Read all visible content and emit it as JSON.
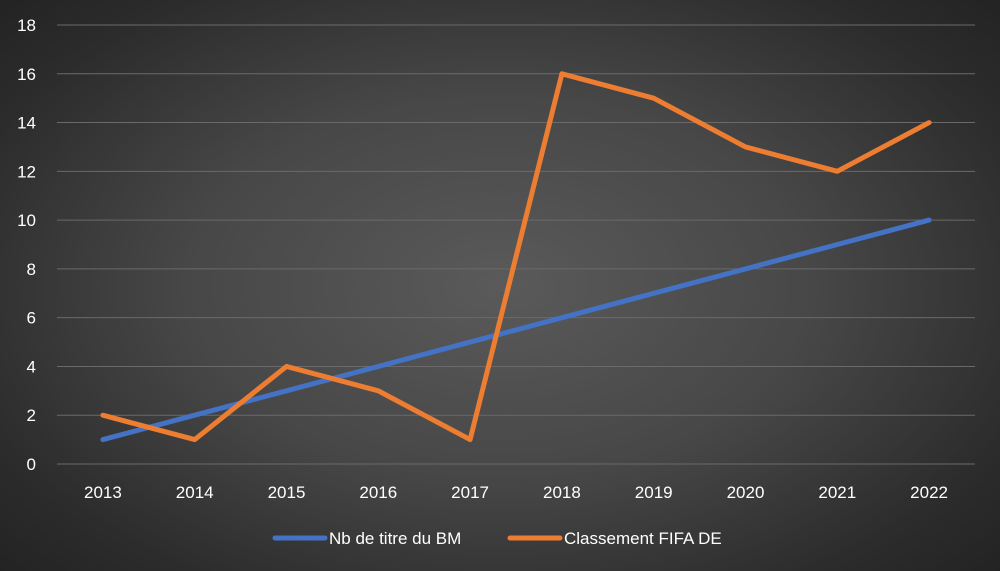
{
  "chart_data": {
    "type": "line",
    "categories": [
      "2013",
      "2014",
      "2015",
      "2016",
      "2017",
      "2018",
      "2019",
      "2020",
      "2021",
      "2022"
    ],
    "series": [
      {
        "name": "Nb de titre du BM",
        "color": "#4472C4",
        "values": [
          1,
          2,
          3,
          4,
          5,
          6,
          7,
          8,
          9,
          10
        ]
      },
      {
        "name": "Classement FIFA DE",
        "color": "#ED7D31",
        "values": [
          2,
          1,
          4,
          3,
          1,
          16,
          15,
          13,
          12,
          14
        ]
      }
    ],
    "ylim": [
      0,
      18
    ],
    "yticks": [
      0,
      2,
      4,
      6,
      8,
      10,
      12,
      14,
      16,
      18
    ],
    "grid": true,
    "legend_position": "bottom",
    "title": "",
    "xlabel": "",
    "ylabel": "",
    "colors": {
      "gridline": "#6a6a6a",
      "text": "#ffffff"
    }
  }
}
